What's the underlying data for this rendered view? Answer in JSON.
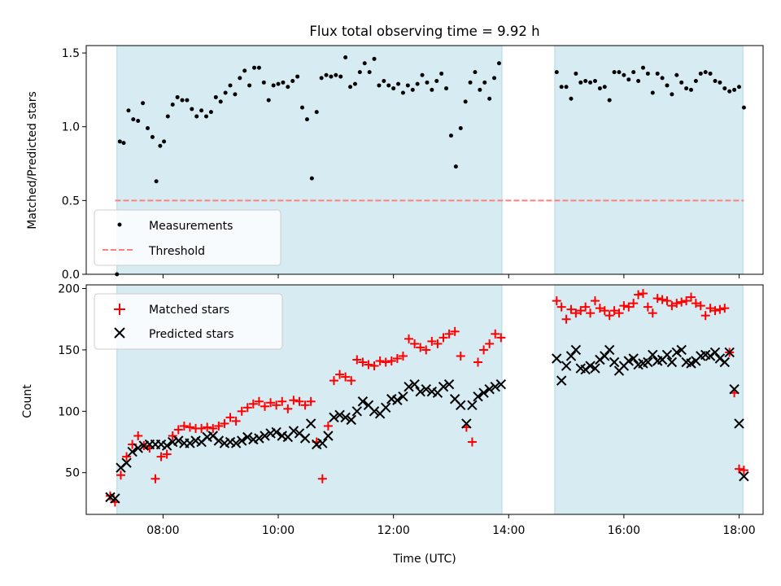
{
  "figure": {
    "title": "Flux total observing time = 9.92 h"
  },
  "chart_data": [
    {
      "type": "scatter",
      "panel": "top",
      "ylabel": "Matched/Predicted stars",
      "xlabel": "",
      "xlim": [
        "06:40",
        "18:25"
      ],
      "ylim": [
        0,
        1.55
      ],
      "yticks": [
        0.0,
        0.5,
        1.0,
        1.5
      ],
      "ytick_labels": [
        "0.0",
        "0.5",
        "1.0",
        "1.5"
      ],
      "xticks": [
        "08:00",
        "10:00",
        "12:00",
        "14:00",
        "16:00",
        "18:00"
      ],
      "xtick_labels_shown": false,
      "grid": false,
      "legend": {
        "placement": "lower-left",
        "entries": [
          "Measurements",
          "Threshold"
        ]
      },
      "shaded_intervals": [
        [
          "07:12",
          "13:53"
        ],
        [
          "14:48",
          "18:04"
        ]
      ],
      "threshold": {
        "name": "Threshold",
        "value": 0.5,
        "x_range": [
          "07:10",
          "18:05"
        ],
        "color": "#ff7f7f",
        "style": "dashed"
      },
      "series": [
        {
          "name": "Measurements",
          "marker": "dot",
          "color": "#000000",
          "x": [
            "07:12",
            "07:15",
            "07:19",
            "07:24",
            "07:29",
            "07:34",
            "07:39",
            "07:44",
            "07:49",
            "07:53",
            "07:57",
            "08:01",
            "08:05",
            "08:10",
            "08:15",
            "08:20",
            "08:25",
            "08:30",
            "08:35",
            "08:40",
            "08:45",
            "08:50",
            "08:55",
            "09:00",
            "09:05",
            "09:10",
            "09:15",
            "09:20",
            "09:25",
            "09:30",
            "09:35",
            "09:40",
            "09:45",
            "09:50",
            "09:55",
            "10:00",
            "10:05",
            "10:10",
            "10:15",
            "10:20",
            "10:25",
            "10:30",
            "10:35",
            "10:40",
            "10:45",
            "10:50",
            "10:55",
            "11:00",
            "11:05",
            "11:10",
            "11:15",
            "11:20",
            "11:25",
            "11:30",
            "11:35",
            "11:40",
            "11:45",
            "11:50",
            "11:55",
            "12:00",
            "12:05",
            "12:10",
            "12:15",
            "12:20",
            "12:25",
            "12:30",
            "12:35",
            "12:40",
            "12:45",
            "12:50",
            "12:55",
            "13:00",
            "13:05",
            "13:10",
            "13:15",
            "13:20",
            "13:25",
            "13:30",
            "13:35",
            "13:40",
            "13:45",
            "13:50",
            "14:50",
            "14:55",
            "15:00",
            "15:05",
            "15:10",
            "15:15",
            "15:20",
            "15:25",
            "15:30",
            "15:35",
            "15:40",
            "15:45",
            "15:50",
            "15:55",
            "16:00",
            "16:05",
            "16:10",
            "16:15",
            "16:20",
            "16:25",
            "16:30",
            "16:35",
            "16:40",
            "16:45",
            "16:50",
            "16:55",
            "17:00",
            "17:05",
            "17:10",
            "17:15",
            "17:20",
            "17:25",
            "17:30",
            "17:35",
            "17:40",
            "17:45",
            "17:50",
            "17:55",
            "18:00",
            "18:05"
          ],
          "y": [
            0.0,
            0.9,
            0.89,
            1.11,
            1.05,
            1.04,
            1.16,
            0.99,
            0.93,
            0.63,
            0.87,
            0.9,
            1.07,
            1.15,
            1.2,
            1.18,
            1.18,
            1.12,
            1.07,
            1.11,
            1.07,
            1.1,
            1.2,
            1.17,
            1.23,
            1.28,
            1.22,
            1.33,
            1.38,
            1.28,
            1.4,
            1.4,
            1.3,
            1.18,
            1.28,
            1.29,
            1.3,
            1.27,
            1.31,
            1.34,
            1.13,
            1.05,
            0.65,
            1.1,
            1.33,
            1.35,
            1.34,
            1.35,
            1.34,
            1.47,
            1.27,
            1.29,
            1.37,
            1.43,
            1.37,
            1.46,
            1.28,
            1.31,
            1.28,
            1.26,
            1.29,
            1.23,
            1.28,
            1.25,
            1.29,
            1.35,
            1.3,
            1.25,
            1.31,
            1.36,
            1.26,
            0.94,
            0.73,
            0.99,
            1.17,
            1.3,
            1.37,
            1.25,
            1.3,
            1.19,
            1.33,
            1.43,
            1.37,
            1.27,
            1.27,
            1.19,
            1.36,
            1.3,
            1.31,
            1.3,
            1.31,
            1.26,
            1.27,
            1.18,
            1.37,
            1.37,
            1.35,
            1.32,
            1.37,
            1.31,
            1.4,
            1.36,
            1.23,
            1.36,
            1.33,
            1.28,
            1.22,
            1.35,
            1.3,
            1.26,
            1.25,
            1.31,
            1.36,
            1.37,
            1.36,
            1.31,
            1.3,
            1.26,
            1.24,
            1.25,
            1.27,
            1.13
          ]
        }
      ]
    },
    {
      "type": "scatter",
      "panel": "bottom",
      "ylabel": "Count",
      "xlabel": "Time (UTC)",
      "xlim": [
        "06:40",
        "18:25"
      ],
      "ylim": [
        16,
        203
      ],
      "yticks": [
        50,
        100,
        150,
        200
      ],
      "ytick_labels": [
        "50",
        "100",
        "150",
        "200"
      ],
      "xticks": [
        "08:00",
        "10:00",
        "12:00",
        "14:00",
        "16:00",
        "18:00"
      ],
      "xtick_labels": [
        "08:00",
        "10:00",
        "12:00",
        "14:00",
        "16:00",
        "18:00"
      ],
      "grid": false,
      "legend": {
        "placement": "upper-left",
        "entries": [
          "Matched stars",
          "Predicted stars"
        ]
      },
      "shaded_intervals": [
        [
          "07:12",
          "13:53"
        ],
        [
          "14:48",
          "18:04"
        ]
      ],
      "series": [
        {
          "name": "Matched stars",
          "marker": "plus",
          "color": "#ff0000",
          "x": [
            "07:05",
            "07:10",
            "07:16",
            "07:22",
            "07:28",
            "07:34",
            "07:40",
            "07:46",
            "07:52",
            "07:58",
            "08:04",
            "08:10",
            "08:16",
            "08:22",
            "08:28",
            "08:34",
            "08:40",
            "08:46",
            "08:52",
            "08:58",
            "09:04",
            "09:10",
            "09:16",
            "09:22",
            "09:28",
            "09:34",
            "09:40",
            "09:46",
            "09:52",
            "09:58",
            "10:04",
            "10:10",
            "10:16",
            "10:22",
            "10:28",
            "10:34",
            "10:40",
            "10:46",
            "10:52",
            "10:58",
            "11:04",
            "11:10",
            "11:16",
            "11:22",
            "11:28",
            "11:34",
            "11:40",
            "11:46",
            "11:52",
            "11:58",
            "12:04",
            "12:10",
            "12:16",
            "12:22",
            "12:28",
            "12:34",
            "12:40",
            "12:46",
            "12:52",
            "12:58",
            "13:04",
            "13:10",
            "13:16",
            "13:22",
            "13:28",
            "13:34",
            "13:40",
            "13:46",
            "13:52",
            "14:50",
            "14:55",
            "15:00",
            "15:05",
            "15:10",
            "15:15",
            "15:20",
            "15:25",
            "15:30",
            "15:35",
            "15:40",
            "15:45",
            "15:50",
            "15:55",
            "16:00",
            "16:05",
            "16:10",
            "16:15",
            "16:20",
            "16:25",
            "16:30",
            "16:35",
            "16:40",
            "16:45",
            "16:50",
            "16:55",
            "17:00",
            "17:05",
            "17:10",
            "17:15",
            "17:20",
            "17:25",
            "17:30",
            "17:35",
            "17:40",
            "17:45",
            "17:50",
            "17:55",
            "18:00",
            "18:05"
          ],
          "y": [
            31,
            26,
            48,
            63,
            73,
            80,
            72,
            70,
            45,
            63,
            65,
            80,
            85,
            88,
            87,
            86,
            86,
            87,
            86,
            88,
            90,
            95,
            92,
            100,
            103,
            106,
            108,
            104,
            107,
            105,
            108,
            102,
            109,
            108,
            105,
            108,
            75,
            45,
            88,
            125,
            130,
            128,
            125,
            142,
            140,
            138,
            137,
            141,
            140,
            141,
            143,
            145,
            159,
            155,
            152,
            150,
            157,
            155,
            160,
            163,
            165,
            145,
            87,
            75,
            140,
            150,
            155,
            163,
            160,
            190,
            185,
            175,
            183,
            180,
            182,
            185,
            180,
            190,
            184,
            182,
            178,
            182,
            180,
            186,
            185,
            188,
            195,
            196,
            185,
            180,
            192,
            191,
            190,
            186,
            188,
            189,
            190,
            193,
            188,
            186,
            178,
            184,
            182,
            183,
            184,
            148,
            115,
            53,
            52
          ]
        },
        {
          "name": "Predicted stars",
          "marker": "x",
          "color": "#000000",
          "x": [
            "07:05",
            "07:10",
            "07:16",
            "07:22",
            "07:28",
            "07:34",
            "07:40",
            "07:46",
            "07:52",
            "07:58",
            "08:04",
            "08:10",
            "08:16",
            "08:22",
            "08:28",
            "08:34",
            "08:40",
            "08:46",
            "08:52",
            "08:58",
            "09:04",
            "09:10",
            "09:16",
            "09:22",
            "09:28",
            "09:34",
            "09:40",
            "09:46",
            "09:52",
            "09:58",
            "10:04",
            "10:10",
            "10:16",
            "10:22",
            "10:28",
            "10:34",
            "10:40",
            "10:46",
            "10:52",
            "10:58",
            "11:04",
            "11:10",
            "11:16",
            "11:22",
            "11:28",
            "11:34",
            "11:40",
            "11:46",
            "11:52",
            "11:58",
            "12:04",
            "12:10",
            "12:16",
            "12:22",
            "12:28",
            "12:34",
            "12:40",
            "12:46",
            "12:52",
            "12:58",
            "13:04",
            "13:10",
            "13:16",
            "13:22",
            "13:28",
            "13:34",
            "13:40",
            "13:46",
            "13:52",
            "14:50",
            "14:55",
            "15:00",
            "15:05",
            "15:10",
            "15:15",
            "15:20",
            "15:25",
            "15:30",
            "15:35",
            "15:40",
            "15:45",
            "15:50",
            "15:55",
            "16:00",
            "16:05",
            "16:10",
            "16:15",
            "16:20",
            "16:25",
            "16:30",
            "16:35",
            "16:40",
            "16:45",
            "16:50",
            "16:55",
            "17:00",
            "17:05",
            "17:10",
            "17:15",
            "17:20",
            "17:25",
            "17:30",
            "17:35",
            "17:40",
            "17:45",
            "17:50",
            "17:55",
            "18:00",
            "18:05"
          ],
          "y": [
            30,
            29,
            54,
            58,
            67,
            70,
            72,
            73,
            73,
            73,
            72,
            75,
            76,
            74,
            74,
            76,
            75,
            79,
            80,
            76,
            74,
            75,
            74,
            76,
            79,
            77,
            78,
            80,
            82,
            83,
            80,
            79,
            84,
            82,
            78,
            90,
            73,
            74,
            80,
            95,
            97,
            95,
            93,
            100,
            108,
            105,
            100,
            98,
            103,
            110,
            109,
            112,
            120,
            122,
            116,
            118,
            116,
            115,
            120,
            122,
            110,
            105,
            90,
            105,
            112,
            115,
            118,
            120,
            122,
            143,
            125,
            137,
            145,
            150,
            135,
            134,
            137,
            135,
            142,
            145,
            150,
            140,
            133,
            137,
            141,
            143,
            138,
            139,
            140,
            146,
            141,
            142,
            146,
            140,
            148,
            150,
            140,
            139,
            141,
            145,
            146,
            145,
            148,
            143,
            140,
            148,
            118,
            90,
            47
          ]
        }
      ]
    }
  ]
}
